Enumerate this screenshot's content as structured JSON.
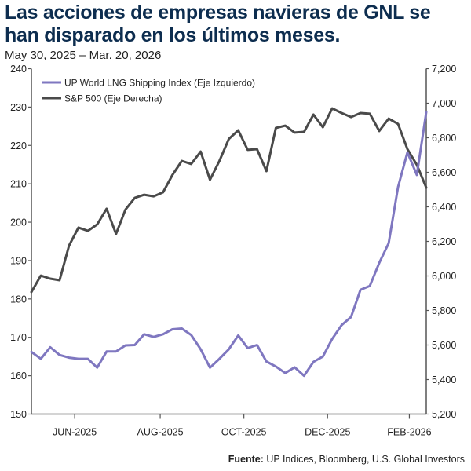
{
  "title": "Las acciones de empresas navieras de GNL se han disparado en los últimos meses.",
  "subtitle": "May 30, 2025 – Mar. 20, 2026",
  "source_label": "Fuente:",
  "source_text": " UP Indices, Bloomberg, U.S. Global Investors",
  "colors": {
    "lng": "#7f77c0",
    "sp500": "#4a4a4a",
    "title": "#0d2d4f"
  },
  "chart_data": {
    "type": "line",
    "title": "Las acciones de empresas navieras de GNL se han disparado en los últimos meses.",
    "xlabel": "",
    "ylabel_left": "",
    "ylabel_right": "",
    "x_tick_labels": [
      "JUN-2025",
      "AUG-2025",
      "OCT-2025",
      "DEC-2025",
      "FEB-2026"
    ],
    "x_tick_indices": [
      4.6,
      13.7,
      22.6,
      31.5,
      40.2
    ],
    "n_points": 43,
    "ylim_left": [
      150,
      240
    ],
    "yticks_left": [
      "150",
      "160",
      "170",
      "180",
      "190",
      "200",
      "210",
      "220",
      "230",
      "240"
    ],
    "ylim_right": [
      5200,
      7200
    ],
    "yticks_right": [
      "5,200",
      "5,400",
      "5,600",
      "5,800",
      "6,000",
      "6,200",
      "6,400",
      "6,600",
      "6,800",
      "7,000",
      "7,200"
    ],
    "legend_position": "top-left",
    "series": [
      {
        "name": "UP World LNG Shipping Index (Eje Izquierdo)",
        "axis": "left",
        "values": [
          166.2,
          164.4,
          167.4,
          165.4,
          164.7,
          164.4,
          164.4,
          162.1,
          166.3,
          166.3,
          167.9,
          168.0,
          170.8,
          170.1,
          170.8,
          172.1,
          172.3,
          170.6,
          166.9,
          162.1,
          164.4,
          166.9,
          170.5,
          167.2,
          168.0,
          163.7,
          162.4,
          160.7,
          162.2,
          160.0,
          163.6,
          165.0,
          169.6,
          173.2,
          175.3,
          182.4,
          183.4,
          189.4,
          194.5,
          209.2,
          218.2,
          212.3,
          228.7
        ]
      },
      {
        "name": "S&P 500 (Eje Derecha)",
        "axis": "right",
        "values": [
          5907,
          6002,
          5984,
          5975,
          6175,
          6280,
          6261,
          6298,
          6389,
          6243,
          6384,
          6452,
          6470,
          6461,
          6484,
          6584,
          6666,
          6648,
          6720,
          6557,
          6666,
          6793,
          6843,
          6730,
          6734,
          6607,
          6857,
          6870,
          6830,
          6834,
          6934,
          6861,
          6970,
          6943,
          6920,
          6943,
          6939,
          6839,
          6911,
          6880,
          6734,
          6643,
          6511
        ]
      }
    ]
  }
}
